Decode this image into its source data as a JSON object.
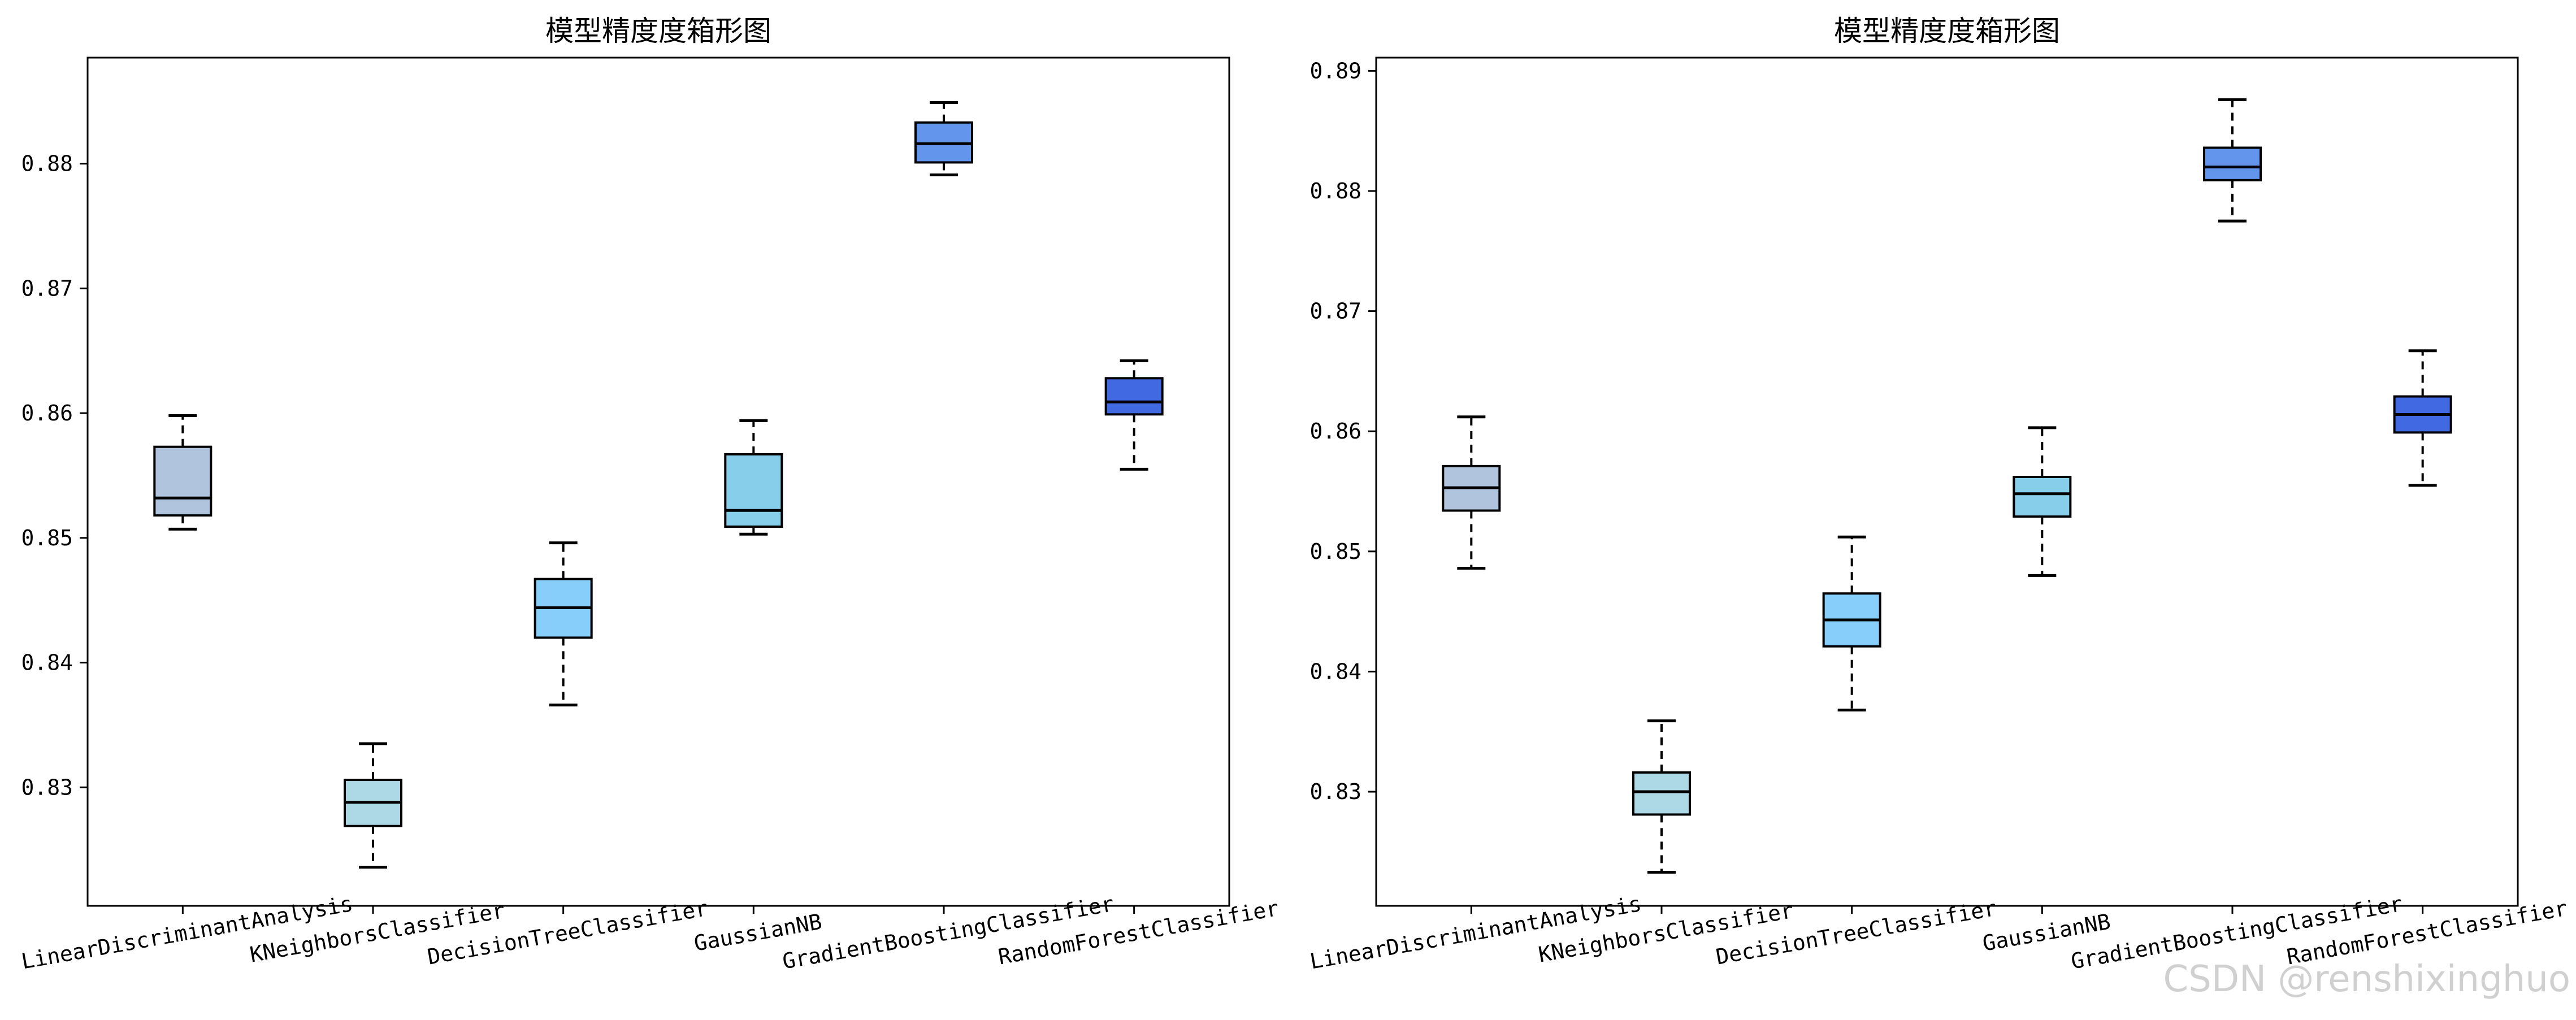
{
  "chart_data": [
    {
      "type": "boxplot",
      "title": "模型精度度箱形图",
      "categories": [
        "LinearDiscriminantAnalysis",
        "KNeighborsClassifier",
        "DecisionTreeClassifier",
        "GaussianNB",
        "GradientBoostingClassifier",
        "RandomForestClassifier"
      ],
      "ylim": [
        0.8205,
        0.8885
      ],
      "yticks": [
        "0.83",
        "0.84",
        "0.85",
        "0.86",
        "0.87",
        "0.88"
      ],
      "boxes": [
        {
          "whisker_low": 0.8507,
          "q1": 0.8518,
          "median": 0.8532,
          "q3": 0.8573,
          "whisker_high": 0.8598,
          "color": "#b0c4de"
        },
        {
          "whisker_low": 0.8236,
          "q1": 0.8269,
          "median": 0.8288,
          "q3": 0.8306,
          "whisker_high": 0.8335,
          "color": "#add8e6"
        },
        {
          "whisker_low": 0.8366,
          "q1": 0.842,
          "median": 0.8444,
          "q3": 0.8467,
          "whisker_high": 0.8496,
          "color": "#87cefa"
        },
        {
          "whisker_low": 0.8503,
          "q1": 0.8509,
          "median": 0.8522,
          "q3": 0.8567,
          "whisker_high": 0.8594,
          "color": "#87ceeb"
        },
        {
          "whisker_low": 0.8791,
          "q1": 0.8801,
          "median": 0.8816,
          "q3": 0.8833,
          "whisker_high": 0.8849,
          "color": "#6495ed"
        },
        {
          "whisker_low": 0.8555,
          "q1": 0.8599,
          "median": 0.8609,
          "q3": 0.8628,
          "whisker_high": 0.8642,
          "color": "#4169e1"
        }
      ]
    },
    {
      "type": "boxplot",
      "title": "模型精度度箱形图",
      "categories": [
        "LinearDiscriminantAnalysis",
        "KNeighborsClassifier",
        "DecisionTreeClassifier",
        "GaussianNB",
        "GradientBoostingClassifier",
        "RandomForestClassifier"
      ],
      "ylim": [
        0.8205,
        0.8911
      ],
      "yticks": [
        "0.83",
        "0.84",
        "0.85",
        "0.86",
        "0.87",
        "0.88",
        "0.89"
      ],
      "boxes": [
        {
          "whisker_low": 0.8486,
          "q1": 0.8534,
          "median": 0.8553,
          "q3": 0.8571,
          "whisker_high": 0.8612,
          "color": "#b0c4de"
        },
        {
          "whisker_low": 0.8233,
          "q1": 0.8281,
          "median": 0.83,
          "q3": 0.8316,
          "whisker_high": 0.8359,
          "color": "#add8e6"
        },
        {
          "whisker_low": 0.8368,
          "q1": 0.8421,
          "median": 0.8443,
          "q3": 0.8465,
          "whisker_high": 0.8512,
          "color": "#87cefa"
        },
        {
          "whisker_low": 0.848,
          "q1": 0.8529,
          "median": 0.8548,
          "q3": 0.8562,
          "whisker_high": 0.8603,
          "color": "#87ceeb"
        },
        {
          "whisker_low": 0.8775,
          "q1": 0.8809,
          "median": 0.882,
          "q3": 0.8836,
          "whisker_high": 0.8876,
          "color": "#6495ed"
        },
        {
          "whisker_low": 0.8555,
          "q1": 0.8599,
          "median": 0.8614,
          "q3": 0.8629,
          "whisker_high": 0.8667,
          "color": "#4169e1"
        }
      ]
    }
  ],
  "watermark": "CSDN @renshixinghuo"
}
